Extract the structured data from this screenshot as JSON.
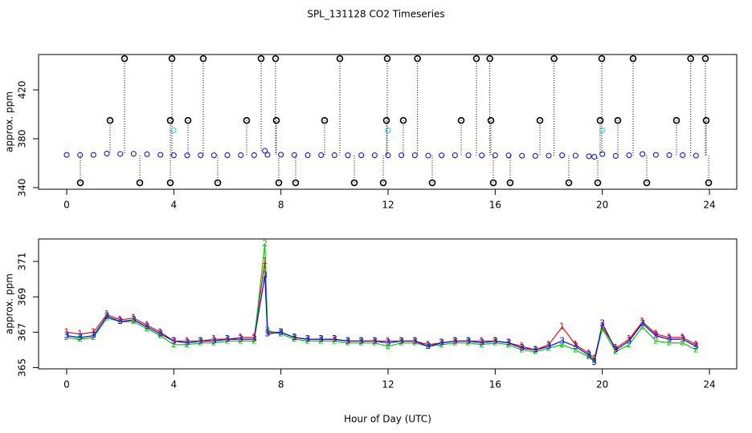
{
  "title": "SPL_131128  CO2 Timeseries",
  "chart_data": [
    {
      "type": "scatter",
      "y_label": "approx. ppm",
      "xlim": [
        -1.05,
        25.02
      ],
      "xticks": [
        0,
        4,
        8,
        12,
        16,
        20,
        24
      ],
      "ylim": [
        338.7,
        448.9
      ],
      "yticks": [
        340,
        380,
        420
      ],
      "series": [
        {
          "color": "#0000ff",
          "drop": false,
          "x": [
            0,
            0.5,
            1,
            1.5,
            2,
            2.5,
            3,
            3.5,
            4,
            4.5,
            5,
            5.5,
            6,
            6.5,
            7,
            7.4,
            7.5,
            8,
            8.5,
            9,
            9.5,
            10,
            10.5,
            11,
            11.5,
            12,
            12.5,
            13,
            13.5,
            14,
            14.5,
            15,
            15.5,
            16,
            16.5,
            17,
            17.5,
            18,
            18.5,
            19,
            19.5,
            19.7,
            20,
            20.5,
            21,
            21.5,
            22,
            22.5,
            23,
            23.5
          ],
          "values": [
            366.8,
            366.7,
            366.8,
            367.9,
            367.6,
            367.7,
            367.3,
            366.9,
            366.5,
            366.4,
            366.5,
            366.5,
            366.6,
            366.6,
            366.6,
            370.2,
            366.9,
            367.0,
            366.7,
            366.6,
            366.6,
            366.6,
            366.5,
            366.5,
            366.5,
            366.4,
            366.5,
            366.5,
            366.2,
            366.4,
            366.5,
            366.5,
            366.4,
            366.5,
            366.4,
            366.1,
            366.0,
            366.2,
            366.5,
            366.2,
            365.7,
            365.3,
            367.5,
            366.0,
            366.5,
            367.5,
            366.8,
            366.6,
            366.6,
            366.2
          ]
        },
        {
          "color": "#000000",
          "drop": true,
          "x": [
            2.16,
            3.93,
            5.1,
            7.26,
            7.8,
            10.2,
            11.97,
            13.1,
            15.3,
            15.8,
            18.2,
            19.98,
            21.15,
            23.3,
            23.85,
            1.62,
            3.87,
            4.53,
            6.72,
            7.83,
            9.63,
            11.94,
            12.57,
            14.73,
            15.84,
            17.67,
            19.92,
            20.58,
            22.77,
            23.88,
            0.51,
            2.73,
            3.87,
            5.64,
            7.92,
            8.55,
            10.74,
            11.82,
            13.65,
            15.93,
            16.56,
            18.75,
            19.83,
            21.66,
            23.97
          ],
          "values": [
            445.6,
            445.6,
            445.6,
            445.6,
            445.6,
            445.6,
            445.6,
            445.6,
            445.6,
            445.6,
            445.6,
            445.6,
            445.6,
            445.6,
            445.6,
            395,
            395,
            395,
            395,
            395,
            395,
            395,
            395,
            395,
            395,
            395,
            395,
            395,
            395,
            395,
            344,
            344,
            344,
            344,
            344,
            344,
            344,
            344,
            344,
            344,
            344,
            344,
            344,
            344,
            344
          ]
        },
        {
          "color": "#00e5e5",
          "drop": false,
          "x": [
            3.99,
            12.0,
            20.0
          ],
          "values": [
            387,
            387,
            387
          ]
        }
      ]
    },
    {
      "type": "line",
      "y_label": "approx. ppm",
      "x_label": "Hour of Day (UTC)",
      "xlim": [
        -1.05,
        25.02
      ],
      "xticks": [
        0,
        4,
        8,
        12,
        16,
        20,
        24
      ],
      "ylim": [
        364.93,
        372.27
      ],
      "yticks": [
        365,
        367,
        369,
        371
      ],
      "x": [
        0,
        0.5,
        1,
        1.5,
        2,
        2.5,
        3,
        3.5,
        4,
        4.5,
        5,
        5.5,
        6,
        6.5,
        7,
        7.4,
        7.5,
        8,
        8.5,
        9,
        9.5,
        10,
        10.5,
        11,
        11.5,
        12,
        12.5,
        13,
        13.5,
        14,
        14.5,
        15,
        15.5,
        16,
        16.5,
        17,
        17.5,
        18,
        18.5,
        19,
        19.5,
        19.7,
        20,
        20.5,
        21,
        21.5,
        22,
        22.5,
        23,
        23.5
      ],
      "series": [
        {
          "marker": "1",
          "color": "#ff0000",
          "values": [
            367.0,
            366.9,
            367.0,
            368.0,
            367.7,
            367.8,
            367.4,
            367.0,
            366.5,
            366.5,
            366.5,
            366.6,
            366.6,
            366.7,
            366.7,
            371.0,
            367.0,
            367.0,
            366.7,
            366.6,
            366.6,
            366.6,
            366.5,
            366.5,
            366.5,
            366.5,
            366.5,
            366.5,
            366.3,
            366.4,
            366.5,
            366.5,
            366.5,
            366.5,
            366.4,
            366.2,
            366.0,
            366.3,
            367.3,
            366.3,
            365.8,
            365.5,
            367.3,
            366.1,
            366.6,
            367.6,
            366.9,
            366.7,
            366.7,
            366.3
          ]
        },
        {
          "marker": "2",
          "color": "#00cd00",
          "values": [
            366.7,
            366.6,
            366.7,
            367.8,
            367.6,
            367.6,
            367.2,
            366.8,
            366.3,
            366.3,
            366.4,
            366.4,
            366.5,
            366.5,
            366.5,
            372.0,
            367.1,
            366.9,
            366.6,
            366.5,
            366.5,
            366.5,
            366.4,
            366.4,
            366.4,
            366.2,
            366.4,
            366.4,
            366.2,
            366.3,
            366.4,
            366.4,
            366.3,
            366.4,
            366.3,
            366.0,
            365.9,
            366.1,
            366.3,
            366.0,
            365.6,
            365.4,
            367.2,
            365.9,
            366.3,
            367.3,
            366.5,
            366.4,
            366.4,
            366.0
          ]
        },
        {
          "marker": "3",
          "color": "#0000ff",
          "values": [
            366.8,
            366.7,
            366.8,
            367.9,
            367.6,
            367.7,
            367.3,
            366.9,
            366.5,
            366.4,
            366.5,
            366.5,
            366.6,
            366.6,
            366.6,
            370.2,
            366.9,
            367.0,
            366.7,
            366.6,
            366.6,
            366.6,
            366.5,
            366.5,
            366.5,
            366.4,
            366.5,
            366.5,
            366.2,
            366.4,
            366.5,
            366.5,
            366.4,
            366.5,
            366.4,
            366.1,
            366.0,
            366.2,
            366.5,
            366.2,
            365.7,
            365.3,
            367.5,
            366.0,
            366.5,
            367.5,
            366.8,
            366.6,
            366.6,
            366.2
          ]
        }
      ]
    }
  ]
}
